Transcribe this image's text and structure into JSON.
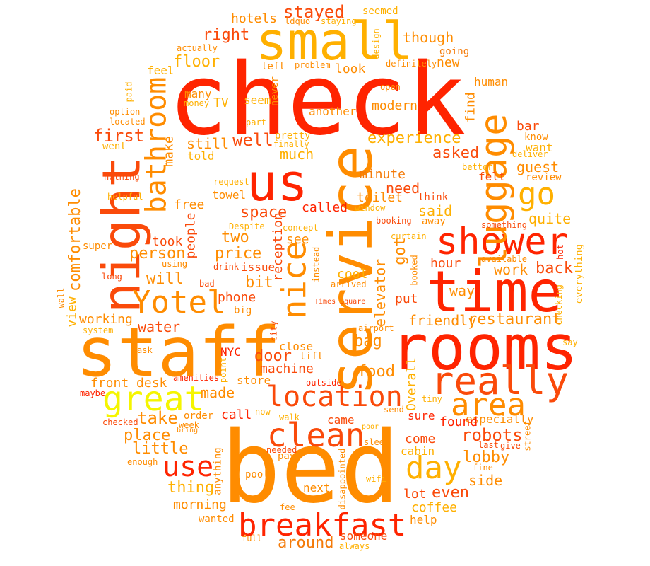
{
  "palette": {
    "red": "#ff2400",
    "red_orange": "#fa4a0a",
    "orange": "#ff8c00",
    "dark_orange": "#f47a08",
    "amber": "#ffb000",
    "yellow": "#ffd400",
    "bright_yellow": "#f5f500"
  },
  "words": [
    "check",
    "bed",
    "staff",
    "rooms",
    "service",
    "time",
    "night",
    "small",
    "us",
    "breakfast",
    "really",
    "clean",
    "shower",
    "luggage",
    "great",
    "location",
    "Yotel",
    "day",
    "area",
    "use",
    "nice",
    "go",
    "bathroom",
    "stayed",
    "right",
    "floor",
    "hotels",
    "seemed",
    "though",
    "actually",
    "ldquo",
    "staying",
    "design",
    "going",
    "left",
    "problem",
    "definitely",
    "new",
    "look",
    "feel",
    "many",
    "human",
    "open",
    "TV",
    "seem",
    "another",
    "never",
    "modern",
    "paid",
    "money",
    "part",
    "option",
    "located",
    "first",
    "well",
    "pretty",
    "finally",
    "experience",
    "find",
    "bar",
    "know",
    "went",
    "make",
    "still",
    "told",
    "much",
    "deliver",
    "want",
    "asked",
    "guest",
    "felt",
    "better",
    "nothing",
    "minute",
    "review",
    "comfortable",
    "free",
    "need",
    "request",
    "towel",
    "window",
    "helpful",
    "space",
    "toilet",
    "said",
    "think",
    "quite",
    "Despite",
    "concept",
    "booking",
    "away",
    "something",
    "called",
    "curtain",
    "people",
    "two",
    "see",
    "took",
    "reception",
    "got",
    "hour",
    "work",
    "back",
    "super",
    "person",
    "price",
    "drink",
    "instead",
    "available",
    "hot",
    "using",
    "issue",
    "booked",
    "everything",
    "long",
    "will",
    "cool",
    "elevator",
    "bad",
    "bit",
    "arrived",
    "way",
    "wall",
    "phone",
    "put",
    "view",
    "Times Square",
    "checking",
    "big",
    "working",
    "city",
    "restaurant",
    "friendly",
    "water",
    "system",
    "airport",
    "say",
    "ask",
    "NYC",
    "bag",
    "door",
    "close",
    "lift",
    "point",
    "machine",
    "food",
    "Overall",
    "amenities",
    "front desk",
    "store",
    "maybe",
    "outside",
    "tiny",
    "order",
    "made",
    "call",
    "now",
    "send",
    "sure",
    "robots",
    "checked",
    "week",
    "bring",
    "walk",
    "take",
    "came",
    "especially",
    "found",
    "place",
    "poor",
    "street",
    "little",
    "come",
    "sleep",
    "last",
    "give",
    "cabin",
    "needed",
    "pay",
    "lobby",
    "anything",
    "enough",
    "disappointed",
    "fine",
    "thing",
    "pool",
    "wifi",
    "side",
    "morning",
    "even",
    "lot",
    "next",
    "coffee",
    "fee",
    "wanted",
    "help",
    "someone",
    "full",
    "around",
    "always"
  ]
}
